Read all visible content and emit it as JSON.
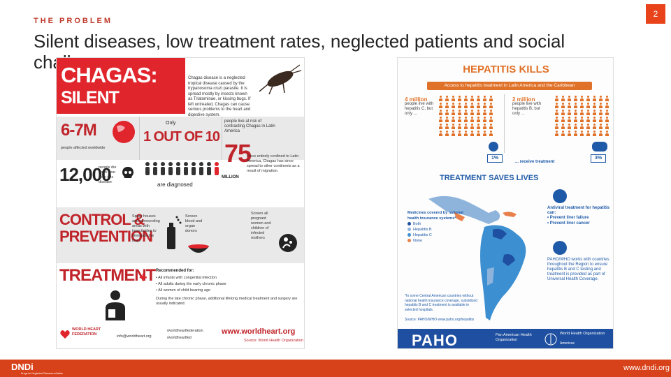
{
  "header": {
    "eyebrow": "THE PROBLEM",
    "page_number": "2",
    "title": "Silent diseases, low treatment rates, neglected patients and social challenges"
  },
  "chagas": {
    "title_line1": "CHAGAS:",
    "title_line2": "SILENT KILLER",
    "intro": "Chagas disease is a neglected tropical disease caused by the trypanosoma cruzi parasite. It is spread mostly by insects known as Triatominae, or kissing bugs. If left untreated, Chagas can cause serious problems to the heart and digestive system.",
    "affected_number": "6-7M",
    "affected_label": "people affected worldwide",
    "only": "Only",
    "one_out_of_ten": "1 OUT OF 10",
    "diagnosed": "are diagnosed",
    "risk_number": "75",
    "risk_million": "MILLION",
    "risk_label": "people live at risk of contracting Chagas in Latin America",
    "risk_note": "Once entirely confined to Latin America, Chagas has since spread to other continents as a result of migration.",
    "deaths_number": "12,000",
    "deaths_label": "people die each year from this disease",
    "control_line1": "CONTROL &",
    "control_line2": "PREVENTION",
    "control_1": "Spray houses and surrounding areas with insecticides to eliminate the bugs",
    "control_2": "Screen blood and organ donors",
    "control_3": "Screen all pregnant women and children of infected mothers",
    "treatment_title": "TREATMENT",
    "recommended": "Recommended for:",
    "rec_1": "• All infants with congenital infection",
    "rec_2": "• All adults during the early chronic phase",
    "rec_3": "• All women of child bearing age",
    "rec_note": "During the late chronic phase, additional lifelong medical treatment and surgery are usually indicated.",
    "org_name": "WORLD HEART FEDERATION",
    "email": "info@worldheart.org",
    "social_1": "/worldheartfederation",
    "social_2": "/worldheartfed",
    "website": "www.worldheart.org",
    "source": "Source: World Health Organization"
  },
  "hepatitis": {
    "title": "HEPATITIS KILLS",
    "access_bar": "Access to hepatitis treatment in Latin America and the Caribbean",
    "hepc_number": "4 million",
    "hepc_text": "people live with hepatitis C, but only ...",
    "hepb_number": "2 million",
    "hepb_text": "people live with hepatitis B, but only ...",
    "receive": "... receive treatment",
    "pct_c": "1%",
    "pct_b": "3%",
    "saves": "TREATMENT SAVES LIVES",
    "antiviral": "Antiviral treatment for hepatitis can:",
    "prevent_1": "• Prevent liver failure",
    "prevent_2": "• Prevent liver cancer",
    "paho_works": "PAHO/WHO works with countries throughout the Region to ensure hepatitis B and C testing and treatment is provided as part of Universal Health Coverage.",
    "legend_title": "Medicines covered by national health insurance systems*",
    "legend_items": [
      "Both",
      "Hepatitis B",
      "Hepatitis C",
      "None"
    ],
    "legend_colors": [
      "#1e4fa0",
      "#8fb4dc",
      "#3c8fd0",
      "#e8804a"
    ],
    "footnote": "*In some Central American countries without national health insurance coverage, subsidized hepatitis B and C treatment is available in selected hospitals.",
    "source": "Source: PAHO/WHO    www.paho.org/hepatitis",
    "paho_logo": "PAHO",
    "paho_org": "Pan American Health Organization",
    "who_org": "World Health Organization",
    "who_region": "Americas"
  },
  "footer": {
    "logo": "DNDi",
    "tagline": "Drugs for Neglected Diseases initiative",
    "url": "www.dndi.org"
  },
  "colors": {
    "accent": "#d8421a",
    "chagas_red": "#e0252c",
    "hep_orange": "#e07128",
    "hep_blue": "#1e5aa8"
  }
}
